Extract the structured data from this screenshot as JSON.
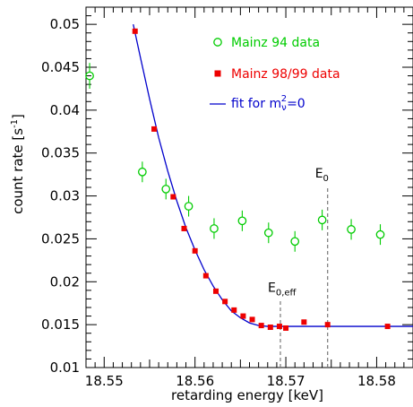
{
  "chart_data": {
    "type": "scatter",
    "title": "",
    "xlabel": "retarding energy  [keV]",
    "ylabel": "count rate  [s",
    "ylabel_sup": "-1",
    "ylabel_close": "]",
    "xlim": [
      18.548,
      18.584
    ],
    "ylim": [
      0.01,
      0.052
    ],
    "x_ticks": [
      18.55,
      18.56,
      18.57,
      18.58
    ],
    "x_tick_labels": [
      "18.55",
      "18.56",
      "18.57",
      "18.58"
    ],
    "y_ticks": [
      0.01,
      0.015,
      0.02,
      0.025,
      0.03,
      0.035,
      0.04,
      0.045,
      0.05
    ],
    "y_tick_labels": [
      "0.01",
      "0.015",
      "0.02",
      "0.025",
      "0.03",
      "0.035",
      "0.04",
      "0.045",
      "0.05"
    ],
    "grid": false,
    "legend_position": "top-right",
    "series": [
      {
        "name": "Mainz 94 data",
        "marker": "open-circle",
        "color": "#00cc00",
        "points": [
          {
            "x": 18.5484,
            "y": 0.044,
            "err": 0.0015
          },
          {
            "x": 18.5542,
            "y": 0.0328,
            "err": 0.0012
          },
          {
            "x": 18.5568,
            "y": 0.0308,
            "err": 0.0012
          },
          {
            "x": 18.5593,
            "y": 0.0288,
            "err": 0.0012
          },
          {
            "x": 18.5621,
            "y": 0.0262,
            "err": 0.0012
          },
          {
            "x": 18.5652,
            "y": 0.0271,
            "err": 0.0012
          },
          {
            "x": 18.5681,
            "y": 0.0257,
            "err": 0.0012
          },
          {
            "x": 18.571,
            "y": 0.0247,
            "err": 0.0012
          },
          {
            "x": 18.574,
            "y": 0.0272,
            "err": 0.0012
          },
          {
            "x": 18.5772,
            "y": 0.0261,
            "err": 0.0012
          },
          {
            "x": 18.5804,
            "y": 0.0255,
            "err": 0.0012
          }
        ]
      },
      {
        "name": "Mainz 98/99 data",
        "marker": "filled-square",
        "color": "#ee0000",
        "points": [
          {
            "x": 18.5534,
            "y": 0.0492
          },
          {
            "x": 18.5555,
            "y": 0.0378
          },
          {
            "x": 18.5576,
            "y": 0.0299
          },
          {
            "x": 18.5588,
            "y": 0.0262
          },
          {
            "x": 18.56,
            "y": 0.0236
          },
          {
            "x": 18.5612,
            "y": 0.0207
          },
          {
            "x": 18.5623,
            "y": 0.0189
          },
          {
            "x": 18.5633,
            "y": 0.0177
          },
          {
            "x": 18.5643,
            "y": 0.0167
          },
          {
            "x": 18.5653,
            "y": 0.016
          },
          {
            "x": 18.5663,
            "y": 0.0156
          },
          {
            "x": 18.5673,
            "y": 0.0149
          },
          {
            "x": 18.5683,
            "y": 0.0147
          },
          {
            "x": 18.5693,
            "y": 0.0148
          },
          {
            "x": 18.57,
            "y": 0.0146
          },
          {
            "x": 18.572,
            "y": 0.0153
          },
          {
            "x": 18.5746,
            "y": 0.015
          },
          {
            "x": 18.5812,
            "y": 0.0148
          }
        ]
      },
      {
        "name": "fit for m",
        "name_sub": "ν",
        "name_sup": "2",
        "name_tail": "=0",
        "marker": "line",
        "color": "#0000cc",
        "x": [
          18.5532,
          18.554,
          18.555,
          18.556,
          18.557,
          18.558,
          18.559,
          18.56,
          18.561,
          18.562,
          18.563,
          18.564,
          18.565,
          18.566,
          18.567,
          18.568,
          18.569,
          18.57,
          18.572,
          18.575,
          18.58,
          18.584
        ],
        "values": [
          0.05,
          0.0461,
          0.0413,
          0.0368,
          0.0329,
          0.0294,
          0.0263,
          0.0237,
          0.0214,
          0.0195,
          0.0179,
          0.0166,
          0.0158,
          0.0152,
          0.0149,
          0.0148,
          0.0148,
          0.0148,
          0.0148,
          0.0148,
          0.0148,
          0.0148
        ]
      }
    ],
    "annotations": [
      {
        "label": "E",
        "sub": "0,eff",
        "x": 18.5694,
        "y_from": 0.01,
        "y_to": 0.0178
      },
      {
        "label": "E",
        "sub": "0",
        "x": 18.5746,
        "y_from": 0.01,
        "y_to": 0.0311
      }
    ]
  }
}
